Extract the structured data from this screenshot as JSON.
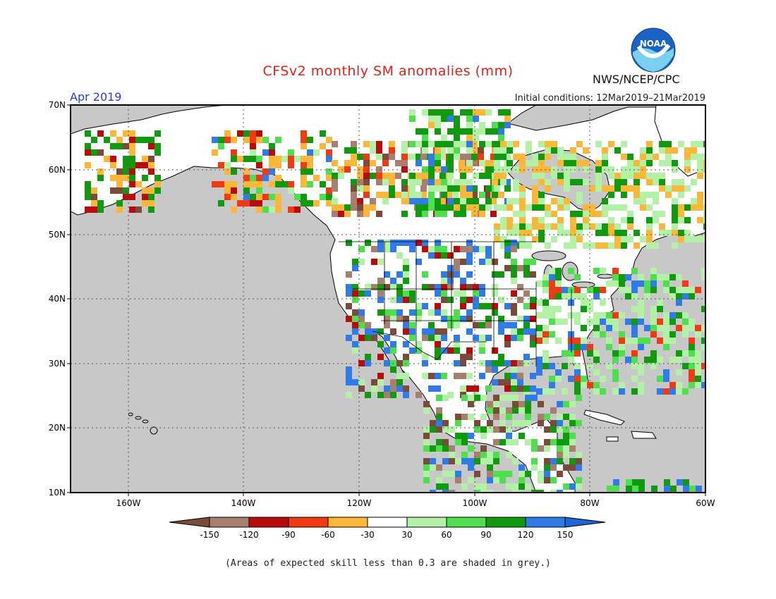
{
  "header": {
    "title": "CFSv2 monthly SM anomalies (mm)",
    "agency": "NWS/NCEP/CPC",
    "logo_text": "NOAA",
    "valid_month": "Apr 2019",
    "initial_conditions": "Initial conditions: 12Mar2019–21Mar2019"
  },
  "map": {
    "lat_labels": [
      "70N",
      "60N",
      "50N",
      "40N",
      "30N",
      "20N",
      "10N"
    ],
    "lon_labels": [
      "160W",
      "140W",
      "120W",
      "100W",
      "80W",
      "60W"
    ],
    "ocean_color": "#c8c8c8",
    "land_color": "#ffffff"
  },
  "legend": {
    "colors": [
      "#7a4a3a",
      "#a87f6e",
      "#b80c0c",
      "#f03a14",
      "#fbb838",
      "#ffffff",
      "#b3f2a6",
      "#4ede4e",
      "#0f9a0f",
      "#2f7be8",
      "#1f65d8"
    ],
    "labels": [
      "-150",
      "-120",
      "-90",
      "-60",
      "-30",
      "30",
      "60",
      "90",
      "120",
      "150"
    ]
  },
  "footnote": "(Areas of expected skill less than 0.3 are shaded in grey.)"
}
